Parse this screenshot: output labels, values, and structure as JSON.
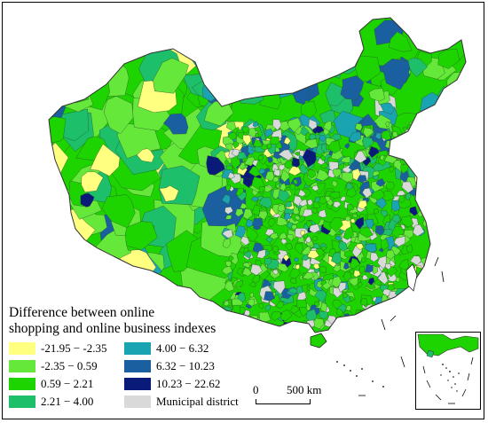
{
  "legend": {
    "title_line1": "Difference between online",
    "title_line2": "shopping and online business  indexes",
    "entries": [
      {
        "label": "-21.95 − -2.35",
        "color": "#ffff80"
      },
      {
        "label": "-2.35 − 0.59",
        "color": "#66e83a"
      },
      {
        "label": "0.59 − 2.21",
        "color": "#1ed400"
      },
      {
        "label": "2.21 − 4.00",
        "color": "#1dbf6b"
      },
      {
        "label": "4.00 − 6.32",
        "color": "#1aa3b0"
      },
      {
        "label": "6.32 − 10.23",
        "color": "#1a5fa0"
      },
      {
        "label": "10.23 − 22.62",
        "color": "#0a1a78"
      },
      {
        "label": "Municipal district",
        "color": "#d9d9d9"
      }
    ]
  },
  "scale_bar": {
    "start_label": "0",
    "end_label": "500 km"
  }
}
